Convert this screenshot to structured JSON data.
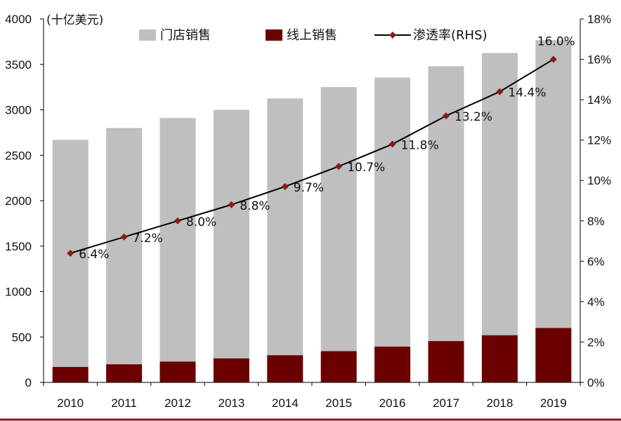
{
  "chart_data": {
    "type": "bar",
    "stacked": true,
    "unit_label": "(十亿美元)",
    "categories": [
      "2010",
      "2011",
      "2012",
      "2013",
      "2014",
      "2015",
      "2016",
      "2017",
      "2018",
      "2019"
    ],
    "series": [
      {
        "name": "门店销售",
        "kind": "bar",
        "axis": "left",
        "color": "#BFBFBF",
        "values": [
          2500,
          2600,
          2680,
          2735,
          2825,
          2905,
          2960,
          3025,
          3105,
          3165
        ]
      },
      {
        "name": "线上销售",
        "kind": "bar",
        "axis": "left",
        "color": "#6B0000",
        "values": [
          170,
          200,
          230,
          265,
          300,
          345,
          395,
          455,
          520,
          600
        ]
      },
      {
        "name": "渗透率(RHS)",
        "kind": "line",
        "axis": "right",
        "color": "#000000",
        "marker_color": "#8B1A1A",
        "values": [
          6.4,
          7.2,
          8.0,
          8.8,
          9.7,
          10.7,
          11.8,
          13.2,
          14.4,
          16.0
        ],
        "labels": [
          "6.4%",
          "7.2%",
          "8.0%",
          "8.8%",
          "9.7%",
          "10.7%",
          "11.8%",
          "13.2%",
          "14.4%",
          "16.0%"
        ]
      }
    ],
    "y_left": {
      "min": 0,
      "max": 4000,
      "ticks": [
        "0",
        "500",
        "1000",
        "1500",
        "2000",
        "2500",
        "3000",
        "3500",
        "4000"
      ]
    },
    "y_right": {
      "min": 0,
      "max": 18,
      "ticks": [
        "0%",
        "2%",
        "4%",
        "6%",
        "8%",
        "10%",
        "12%",
        "14%",
        "16%",
        "18%"
      ]
    },
    "legend": [
      "门店销售",
      "线上销售",
      "渗透率(RHS)"
    ],
    "legend_position": "top",
    "grid": false,
    "accent_color": "#8B1A1A"
  }
}
